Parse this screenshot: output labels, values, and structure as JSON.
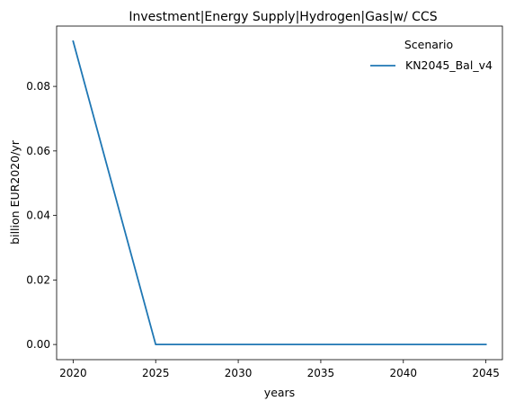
{
  "chart_data": {
    "type": "line",
    "title": "Investment|Energy Supply|Hydrogen|Gas|w/ CCS",
    "xlabel": "years",
    "ylabel": "billion EUR2020/yr",
    "x": [
      2020,
      2025,
      2030,
      2035,
      2040,
      2045
    ],
    "xlim": [
      2019,
      2046
    ],
    "ylim": [
      -0.0047,
      0.0987
    ],
    "xticks": [
      2020,
      2025,
      2030,
      2035,
      2040,
      2045
    ],
    "xtick_labels": [
      "2020",
      "2025",
      "2030",
      "2035",
      "2040",
      "2045"
    ],
    "yticks": [
      0.0,
      0.02,
      0.04,
      0.06,
      0.08
    ],
    "ytick_labels": [
      "0.00",
      "0.02",
      "0.04",
      "0.06",
      "0.08"
    ],
    "grid": false,
    "legend": {
      "title": "Scenario",
      "placement": "top-right"
    },
    "series": [
      {
        "name": "KN2045_Bal_v4",
        "color": "#1f77b4",
        "values": [
          0.094,
          0.0,
          0.0,
          0.0,
          0.0,
          0.0
        ]
      }
    ]
  }
}
